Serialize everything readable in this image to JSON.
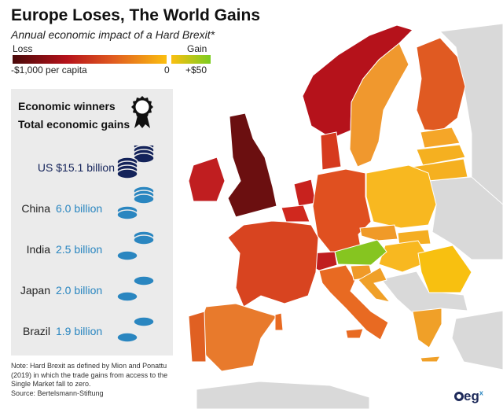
{
  "header": {
    "title": "Europe Loses, The World Gains",
    "subtitle": "Annual economic impact of a Hard Brexit*"
  },
  "legend": {
    "loss_label": "Loss",
    "gain_label": "Gain",
    "min_label": "-$1,000 per capita",
    "zero_label": "0",
    "max_label": "+$50",
    "loss_colors": [
      "#4a0a0a",
      "#b5121b",
      "#e05a20",
      "#fbbf10"
    ],
    "gain_colors": [
      "#fbbf10",
      "#7ccd20"
    ]
  },
  "panel": {
    "heading1": "Economic winners",
    "heading2": "Total economic gains",
    "icon": "award-ribbon-icon",
    "winners": [
      {
        "country": "US",
        "value": "$15.1 billion",
        "color": "#14235a"
      },
      {
        "country": "China",
        "value": "6.0 billion",
        "color": "#2a86c0"
      },
      {
        "country": "India",
        "value": "2.5 billion",
        "color": "#2a86c0"
      },
      {
        "country": "Japan",
        "value": "2.0 billion",
        "color": "#2a86c0"
      },
      {
        "country": "Brazil",
        "value": "1.9 billion",
        "color": "#2a86c0"
      }
    ]
  },
  "note": {
    "text": "Note: Hard Brexit as defined by Mion and Ponattu (2019) in which the trade gains from access to the Single Market fall to zero.",
    "source": "Source: Bertelsmann-Stiftung"
  },
  "logo": {
    "text": "eg",
    "sup": "x"
  },
  "map": {
    "no_data_color": "#d9d9d9",
    "regions": [
      {
        "id": "norway",
        "fill": "#b5121b"
      },
      {
        "id": "sweden",
        "fill": "#f0982e"
      },
      {
        "id": "finland",
        "fill": "#e05a22"
      },
      {
        "id": "estonia",
        "fill": "#f5a628"
      },
      {
        "id": "latvia",
        "fill": "#f5b020"
      },
      {
        "id": "lithuania",
        "fill": "#f5b020"
      },
      {
        "id": "denmark",
        "fill": "#d63a1e"
      },
      {
        "id": "uk",
        "fill": "#6b0f10"
      },
      {
        "id": "ireland",
        "fill": "#c01e20"
      },
      {
        "id": "netherlands",
        "fill": "#c8221e"
      },
      {
        "id": "belgium",
        "fill": "#d0281e"
      },
      {
        "id": "germany",
        "fill": "#e05020"
      },
      {
        "id": "poland",
        "fill": "#f8b820"
      },
      {
        "id": "czechia",
        "fill": "#f09a28"
      },
      {
        "id": "slovakia",
        "fill": "#f5ae22"
      },
      {
        "id": "hungary",
        "fill": "#f8b820"
      },
      {
        "id": "austria",
        "fill": "#86c520"
      },
      {
        "id": "switzerland",
        "fill": "#c01e20"
      },
      {
        "id": "france",
        "fill": "#d84420"
      },
      {
        "id": "italy",
        "fill": "#e86a22"
      },
      {
        "id": "slovenia",
        "fill": "#f09a28"
      },
      {
        "id": "croatia",
        "fill": "#f0a028"
      },
      {
        "id": "romania",
        "fill": "#f8c010"
      },
      {
        "id": "spain",
        "fill": "#e87a2c"
      },
      {
        "id": "portugal",
        "fill": "#e06022"
      },
      {
        "id": "greece",
        "fill": "#f0a028"
      }
    ]
  }
}
